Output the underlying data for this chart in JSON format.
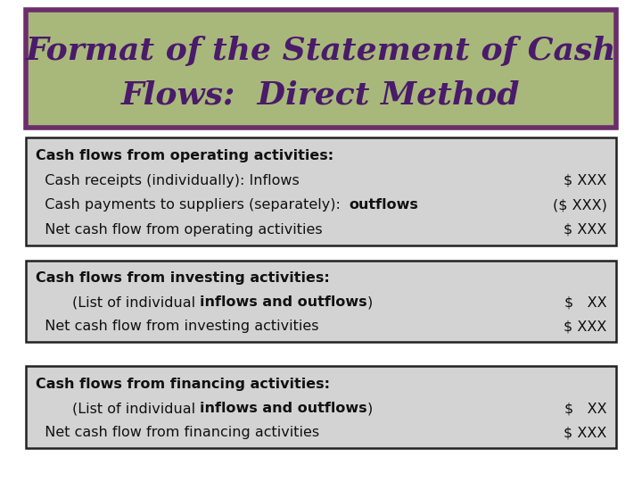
{
  "title_line1": "Format of the Statement of Cash",
  "title_line2": "Flows:  Direct Method",
  "title_bg_color": "#a8b87a",
  "title_border_color": "#6b2d6b",
  "title_text_color": "#4a1a6b",
  "title_fontsize": 26,
  "box_bg_color": "#d3d3d3",
  "box_border_color": "#222222",
  "main_bg_color": "#ffffff",
  "section1_header": "Cash flows from operating activities:",
  "section1_lines": [
    [
      "  Cash receipts (individually): Inflows",
      "",
      "",
      "$ XXX"
    ],
    [
      "  Cash payments to suppliers (separately):  ",
      "outflows",
      "",
      "($ XXX)"
    ],
    [
      "  Net cash flow from operating activities",
      "",
      "",
      "$ XXX"
    ]
  ],
  "section2_header": "Cash flows from investing activities:",
  "section2_lines": [
    [
      "        (List of individual ",
      "inflows and outflows",
      ")",
      "$   XX"
    ],
    [
      "  Net cash flow from investing activities",
      "",
      "",
      "$ XXX"
    ]
  ],
  "section3_header": "Cash flows from financing activities:",
  "section3_lines": [
    [
      "        (List of individual ",
      "inflows and outflows",
      ")",
      "$   XX"
    ],
    [
      "  Net cash flow from financing activities",
      "",
      "",
      "$ XXX"
    ]
  ],
  "text_color": "#111111",
  "body_fontsize": 11.5
}
